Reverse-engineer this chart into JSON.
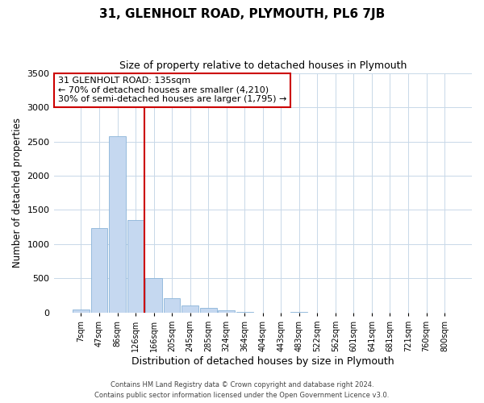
{
  "title": "31, GLENHOLT ROAD, PLYMOUTH, PL6 7JB",
  "subtitle": "Size of property relative to detached houses in Plymouth",
  "xlabel": "Distribution of detached houses by size in Plymouth",
  "ylabel": "Number of detached properties",
  "bin_labels": [
    "7sqm",
    "47sqm",
    "86sqm",
    "126sqm",
    "166sqm",
    "205sqm",
    "245sqm",
    "285sqm",
    "324sqm",
    "364sqm",
    "404sqm",
    "443sqm",
    "483sqm",
    "522sqm",
    "562sqm",
    "601sqm",
    "641sqm",
    "681sqm",
    "721sqm",
    "760sqm",
    "800sqm"
  ],
  "bar_values": [
    50,
    1230,
    2580,
    1350,
    500,
    205,
    110,
    65,
    30,
    5,
    0,
    0,
    5,
    0,
    0,
    0,
    0,
    0,
    0,
    0,
    0
  ],
  "bar_color": "#c5d8f0",
  "bar_edgecolor": "#8ab4d8",
  "vline_x": 3.5,
  "vline_color": "#cc0000",
  "annotation_title": "31 GLENHOLT ROAD: 135sqm",
  "annotation_line1": "← 70% of detached houses are smaller (4,210)",
  "annotation_line2": "30% of semi-detached houses are larger (1,795) →",
  "annotation_box_edgecolor": "#cc0000",
  "ylim": [
    0,
    3500
  ],
  "yticks": [
    0,
    500,
    1000,
    1500,
    2000,
    2500,
    3000,
    3500
  ],
  "footer_line1": "Contains HM Land Registry data © Crown copyright and database right 2024.",
  "footer_line2": "Contains public sector information licensed under the Open Government Licence v3.0.",
  "bg_color": "#ffffff",
  "grid_color": "#c8d8e8"
}
